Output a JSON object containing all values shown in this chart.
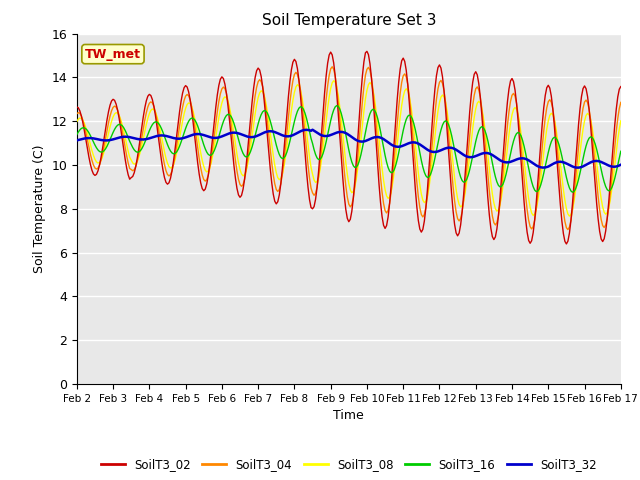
{
  "title": "Soil Temperature Set 3",
  "xlabel": "Time",
  "ylabel": "Soil Temperature (C)",
  "annotation_text": "TW_met",
  "annotation_color": "#cc0000",
  "annotation_bg": "#ffffcc",
  "annotation_border": "#999900",
  "xlim": [
    0,
    15
  ],
  "ylim": [
    0,
    16
  ],
  "yticks": [
    0,
    2,
    4,
    6,
    8,
    10,
    12,
    14,
    16
  ],
  "xtick_labels": [
    "Feb 2",
    "Feb 3",
    "Feb 4",
    "Feb 5",
    "Feb 6",
    "Feb 7",
    "Feb 8",
    "Feb 9",
    "Feb 10",
    "Feb 11",
    "Feb 12",
    "Feb 13",
    "Feb 14",
    "Feb 15",
    "Feb 16",
    "Feb 17"
  ],
  "bg_color": "#e8e8e8",
  "grid_color": "#ffffff",
  "colors": {
    "SoilT3_02": "#cc0000",
    "SoilT3_04": "#ff8800",
    "SoilT3_08": "#ffff00",
    "SoilT3_16": "#00cc00",
    "SoilT3_32": "#0000cc"
  },
  "n_points": 361
}
